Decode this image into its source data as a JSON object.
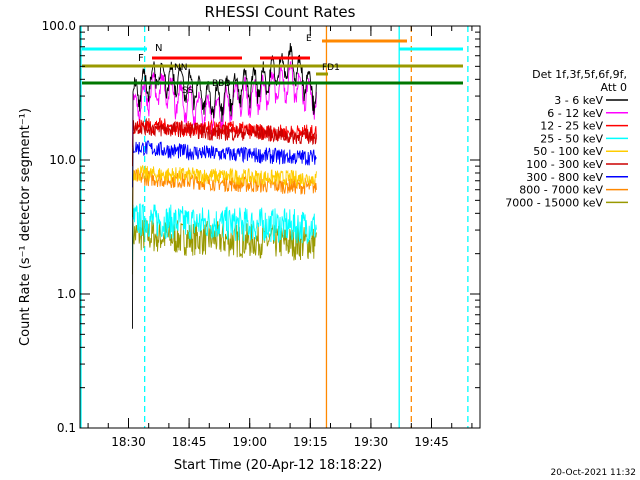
{
  "chart_data": {
    "type": "line",
    "title": "RHESSI Count Rates",
    "xlabel": "Start Time (20-Apr-12 18:18:22)",
    "ylabel": "Count Rate (s⁻¹ detector segment⁻¹)",
    "yscale": "log",
    "ylim": [
      0.1,
      100.0
    ],
    "xlim_minutes": [
      "18:18",
      "19:57"
    ],
    "x_ticks": [
      "18:30",
      "18:45",
      "19:00",
      "19:15",
      "19:30",
      "19:45"
    ],
    "y_ticks": [
      "0.1",
      "1.0",
      "10.0",
      "100.0"
    ],
    "grid": false,
    "legend_placement": "right",
    "legend_header": [
      "Det 1f,3f,5f,6f,9f,",
      "Att 0"
    ],
    "timestamp": "20-Oct-2021 11:32",
    "series": [
      {
        "name": "3 - 6 keV",
        "color": "#000000",
        "level": [
          30,
          45,
          38,
          28,
          35,
          40,
          55,
          32
        ]
      },
      {
        "name": "6 - 12 keV",
        "color": "#ff00ff",
        "level": [
          25,
          35,
          28,
          22,
          30,
          32,
          40,
          28
        ]
      },
      {
        "name": "12 - 25 keV",
        "color": "#ff0000",
        "level": [
          18,
          18,
          17,
          17,
          17,
          16,
          16,
          16
        ]
      },
      {
        "name": "25 - 50 keV",
        "color": "#00ffff",
        "level": [
          3.6,
          3.5,
          3.4,
          3.4,
          3.3,
          3.3,
          3.2,
          3.2
        ]
      },
      {
        "name": "50 - 100 keV",
        "color": "#ffcc00",
        "level": [
          8.0,
          7.8,
          7.7,
          7.6,
          7.5,
          7.4,
          7.3,
          7.3
        ]
      },
      {
        "name": "100 - 300 keV",
        "color": "#cc0000",
        "level": [
          18,
          17,
          17,
          16,
          16,
          16,
          15,
          15
        ]
      },
      {
        "name": "300 - 800 keV",
        "color": "#0000ff",
        "level": [
          12.5,
          12,
          11.5,
          11.2,
          11,
          10.8,
          10.5,
          10.5
        ]
      },
      {
        "name": "800 - 7000 keV",
        "color": "#ff8800",
        "level": [
          7.5,
          7.2,
          7.0,
          6.8,
          6.6,
          6.5,
          6.4,
          6.3
        ]
      },
      {
        "name": "7000 - 15000 keV",
        "color": "#999900",
        "level": [
          2.8,
          2.7,
          2.6,
          2.6,
          2.5,
          2.5,
          2.4,
          2.4
        ]
      }
    ],
    "data_start_min": "18:31",
    "data_end_min": "19:16",
    "annotations": {
      "F_label": "F",
      "N_label": "N",
      "NN_label": "NN",
      "SS_label": "SS",
      "BB_label": "BBB",
      "FD1_label": "FD1",
      "E_label": "E"
    },
    "vertical_markers": [
      {
        "time": "18:18",
        "color": "#00ffff",
        "style": "solid"
      },
      {
        "time": "18:34",
        "color": "#00ffff",
        "style": "dashed"
      },
      {
        "time": "19:19",
        "color": "#ff8800",
        "style": "solid"
      },
      {
        "time": "19:37",
        "color": "#00ffff",
        "style": "solid"
      },
      {
        "time": "19:40",
        "color": "#ff8800",
        "style": "dashed"
      },
      {
        "time": "19:54",
        "color": "#00ffff",
        "style": "dashed"
      }
    ]
  }
}
